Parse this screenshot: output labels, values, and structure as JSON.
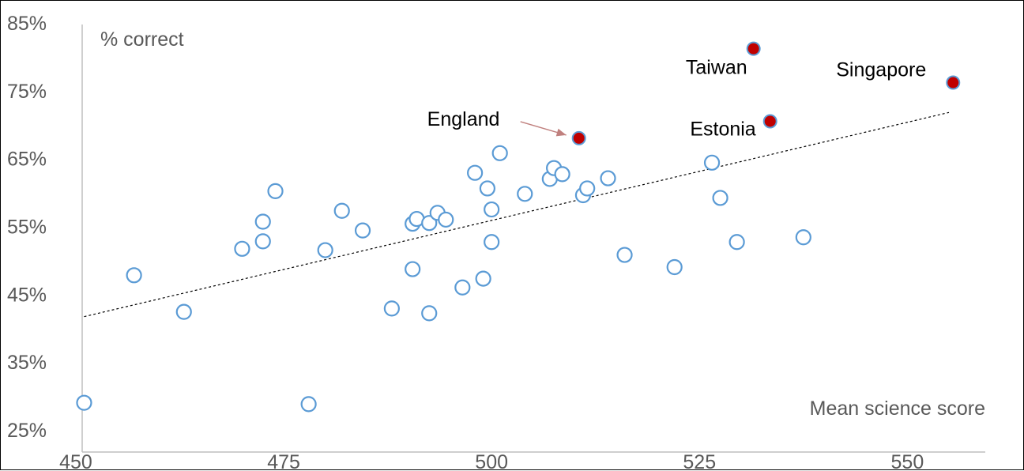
{
  "colors": {
    "point_stroke": "#5b9bd5",
    "highlight_fill": "#c00000",
    "axis": "#bfbfbf",
    "trendline": "#000000",
    "arrow": "#c0807e",
    "text_muted": "#595959"
  },
  "chart_data": {
    "type": "scatter",
    "title": "",
    "xlabel": "Mean science score",
    "ylabel": "% correct",
    "xlim": [
      450,
      560
    ],
    "ylim": [
      25,
      85
    ],
    "x_ticks": [
      450,
      475,
      500,
      525,
      550
    ],
    "y_ticks": [
      25,
      35,
      45,
      55,
      65,
      75,
      85
    ],
    "x_tick_labels": [
      "450",
      "475",
      "500",
      "525",
      "550"
    ],
    "y_tick_labels": [
      "25%",
      "35%",
      "45%",
      "55%",
      "65%",
      "75%",
      "85%"
    ],
    "grid": false,
    "trendline": {
      "type": "linear",
      "x": [
        451,
        555
      ],
      "y": [
        41.7,
        71.8
      ]
    },
    "points": [
      {
        "x": 451,
        "y": 29
      },
      {
        "x": 457,
        "y": 47.8
      },
      {
        "x": 463,
        "y": 42.4
      },
      {
        "x": 470,
        "y": 51.7
      },
      {
        "x": 472.5,
        "y": 52.8
      },
      {
        "x": 472.5,
        "y": 55.7
      },
      {
        "x": 474,
        "y": 60.2
      },
      {
        "x": 478,
        "y": 28.8
      },
      {
        "x": 480,
        "y": 51.5
      },
      {
        "x": 482,
        "y": 57.3
      },
      {
        "x": 484.5,
        "y": 54.4
      },
      {
        "x": 488,
        "y": 42.9
      },
      {
        "x": 490.5,
        "y": 48.7
      },
      {
        "x": 490.5,
        "y": 55.4
      },
      {
        "x": 491,
        "y": 56.1
      },
      {
        "x": 492.5,
        "y": 42.2
      },
      {
        "x": 492.5,
        "y": 55.5
      },
      {
        "x": 493.5,
        "y": 57.0
      },
      {
        "x": 494.5,
        "y": 56.0
      },
      {
        "x": 496.5,
        "y": 46.0
      },
      {
        "x": 498,
        "y": 62.9
      },
      {
        "x": 499,
        "y": 47.3
      },
      {
        "x": 499.5,
        "y": 60.6
      },
      {
        "x": 500,
        "y": 52.7
      },
      {
        "x": 500,
        "y": 57.5
      },
      {
        "x": 501,
        "y": 65.8
      },
      {
        "x": 504,
        "y": 59.8
      },
      {
        "x": 507,
        "y": 62.0
      },
      {
        "x": 507.5,
        "y": 63.6
      },
      {
        "x": 508.5,
        "y": 62.7
      },
      {
        "x": 511,
        "y": 59.6
      },
      {
        "x": 511.5,
        "y": 60.6
      },
      {
        "x": 514,
        "y": 62.1
      },
      {
        "x": 516,
        "y": 50.8
      },
      {
        "x": 522,
        "y": 49.0
      },
      {
        "x": 526.5,
        "y": 64.4
      },
      {
        "x": 527.5,
        "y": 59.2
      },
      {
        "x": 529.5,
        "y": 52.7
      },
      {
        "x": 537.5,
        "y": 53.4
      }
    ],
    "highlighted": [
      {
        "name": "England",
        "x": 510.5,
        "y": 68.0
      },
      {
        "name": "Taiwan",
        "x": 531.5,
        "y": 81.2
      },
      {
        "name": "Estonia",
        "x": 533.5,
        "y": 70.5
      },
      {
        "name": "Singapore",
        "x": 555.5,
        "y": 76.2
      }
    ]
  }
}
